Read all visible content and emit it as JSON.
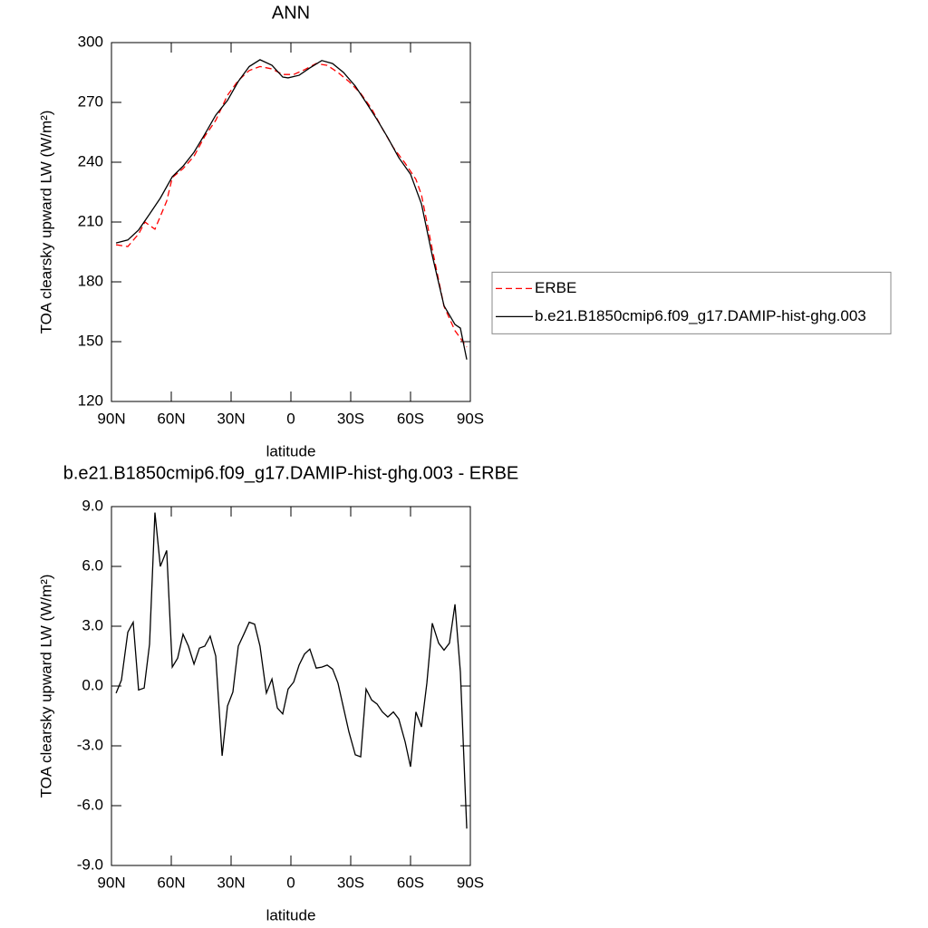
{
  "chart_data": [
    {
      "type": "line",
      "title": "ANN",
      "ylabel": "TOA clearsky upward LW (W/m²)",
      "xlabel": "latitude",
      "xlim": [
        90,
        -90
      ],
      "xticks": [
        {
          "value": 90,
          "label": "90N"
        },
        {
          "value": 60,
          "label": "60N"
        },
        {
          "value": 30,
          "label": "30N"
        },
        0,
        {
          "value": -30,
          "label": "30S"
        },
        {
          "value": -60,
          "label": "60S"
        },
        {
          "value": -90,
          "label": "90S"
        }
      ],
      "ylim": [
        120,
        300
      ],
      "yticks": [
        120,
        150,
        180,
        210,
        240,
        270,
        300
      ],
      "legend_position": "right",
      "series": [
        {
          "name": "ERBE",
          "color": "#ff0000",
          "linestyle": "dashed",
          "x": [
            87.7,
            81.8,
            76.4,
            73.2,
            68.2,
            62.3,
            59.5,
            54.1,
            48.6,
            43.2,
            37.7,
            31.8,
            26.4,
            20.9,
            15.5,
            9.5,
            4.1,
            -1.4,
            -6.8,
            -12.7,
            -18.2,
            -23.6,
            -29.1,
            -35.0,
            -40.5,
            -45.9,
            -51.4,
            -57.3,
            -62.7,
            -65.5,
            -70.9,
            -76.8,
            -82.3,
            -88.2
          ],
          "values": [
            198.6,
            197.7,
            204,
            210,
            206.4,
            220.5,
            232.3,
            236.8,
            243,
            253,
            261,
            273.6,
            281,
            286,
            288,
            286.8,
            284,
            284,
            286.4,
            289.5,
            288.6,
            285,
            280.5,
            274.5,
            266.8,
            256.8,
            247.3,
            239.5,
            231.4,
            223.6,
            196.4,
            167.7,
            155.5,
            147.3
          ]
        },
        {
          "name": "b.e21.B1850cmip6.f09_g17.DAMIP-hist-ghg.003",
          "color": "#000000",
          "linestyle": "solid",
          "x": [
            87.7,
            81.8,
            76.4,
            70.9,
            65.5,
            59.5,
            54.1,
            48.6,
            43.2,
            37.7,
            31.8,
            26.4,
            20.9,
            15.5,
            9.5,
            4.1,
            1.4,
            -4.1,
            -9.5,
            -15.5,
            -20.9,
            -26.4,
            -32.3,
            -37.7,
            -43.2,
            -48.6,
            -54.1,
            -60.0,
            -65.5,
            -70.9,
            -76.8,
            -82.3,
            -85.0,
            -88.2
          ],
          "values": [
            199.5,
            201,
            206,
            214,
            222,
            232.7,
            238,
            245,
            254,
            263.6,
            271,
            280.5,
            288,
            291.4,
            288.6,
            282.7,
            282.3,
            283.6,
            287.3,
            291,
            289.5,
            285,
            278.2,
            270,
            261.4,
            252.3,
            242.3,
            234,
            219,
            193.2,
            168,
            158.6,
            156.8,
            141
          ]
        }
      ]
    },
    {
      "type": "line",
      "title": "b.e21.B1850cmip6.f09_g17.DAMIP-hist-ghg.003 - ERBE",
      "ylabel": "TOA clearsky upward LW (W/m²)",
      "xlabel": "latitude",
      "xlim": [
        90,
        -90
      ],
      "xticks": [
        {
          "value": 90,
          "label": "90N"
        },
        {
          "value": 60,
          "label": "60N"
        },
        {
          "value": 30,
          "label": "30N"
        },
        0,
        {
          "value": -30,
          "label": "30S"
        },
        {
          "value": -60,
          "label": "60S"
        },
        {
          "value": -90,
          "label": "90S"
        }
      ],
      "ylim": [
        -9,
        9
      ],
      "yticks": [
        {
          "value": -9,
          "label": "-9.0"
        },
        {
          "value": -6,
          "label": "-6.0"
        },
        {
          "value": -3,
          "label": "-3.0"
        },
        {
          "value": 0,
          "label": "0.0"
        },
        {
          "value": 3,
          "label": "3.0"
        },
        {
          "value": 6,
          "label": "6.0"
        },
        {
          "value": 9,
          "label": "9.0"
        }
      ],
      "series": [
        {
          "color": "#000000",
          "linestyle": "solid",
          "x": [
            87.7,
            85.0,
            81.8,
            79.1,
            76.4,
            73.6,
            70.9,
            68.2,
            65.5,
            62.3,
            59.5,
            56.8,
            54.1,
            51.4,
            48.6,
            45.9,
            43.2,
            40.5,
            37.7,
            34.5,
            31.8,
            29.1,
            26.4,
            23.6,
            20.9,
            18.2,
            15.5,
            12.3,
            9.5,
            6.8,
            4.1,
            1.4,
            -1.4,
            -4.1,
            -6.8,
            -9.5,
            -12.7,
            -15.5,
            -18.2,
            -20.9,
            -23.6,
            -26.4,
            -29.1,
            -32.3,
            -35.0,
            -37.7,
            -40.5,
            -43.2,
            -45.9,
            -48.6,
            -51.4,
            -54.1,
            -57.3,
            -60.0,
            -62.7,
            -65.5,
            -68.2,
            -70.9,
            -74.1,
            -76.8,
            -79.5,
            -82.3,
            -85.0,
            -88.2
          ],
          "values": [
            -0.36,
            0.3,
            2.7,
            3.2,
            -0.2,
            -0.1,
            2.1,
            8.7,
            6.0,
            6.8,
            0.95,
            1.4,
            2.6,
            2.0,
            1.1,
            1.9,
            2.0,
            2.5,
            1.5,
            -3.5,
            -1.0,
            -0.3,
            2.0,
            2.6,
            3.2,
            3.1,
            2.0,
            -0.35,
            0.35,
            -1.1,
            -1.4,
            -0.15,
            0.2,
            1.05,
            1.6,
            1.85,
            0.9,
            0.95,
            1.05,
            0.85,
            0.15,
            -1.1,
            -2.3,
            -3.45,
            -3.55,
            -0.15,
            -0.7,
            -0.9,
            -1.3,
            -1.55,
            -1.3,
            -1.65,
            -2.8,
            -4.05,
            -1.3,
            -2.05,
            0.15,
            3.15,
            2.15,
            1.8,
            2.15,
            4.1,
            0.7,
            -7.15
          ]
        }
      ]
    }
  ]
}
